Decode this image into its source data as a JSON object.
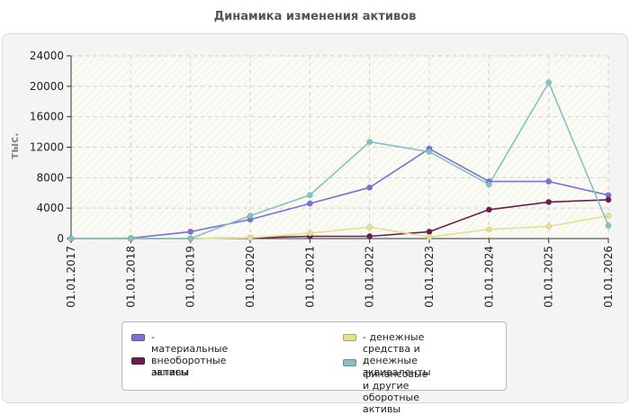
{
  "title": "Динамика изменения активов",
  "chart_data": {
    "type": "line",
    "title": "Динамика изменения активов",
    "ylabel": "тыс.",
    "xlabel": "",
    "ylim": [
      0,
      24000
    ],
    "yticks": [
      "0",
      "4000",
      "8000",
      "12000",
      "16000",
      "20000",
      "24000"
    ],
    "categories": [
      "01.01.2017",
      "01.01.2018",
      "01.01.2019",
      "01.01.2020",
      "01.01.2021",
      "01.01.2022",
      "01.01.2023",
      "01.01.2024",
      "01.01.2025",
      "01.01.2026"
    ],
    "grid": true,
    "legend_position": "bottom",
    "series": [
      {
        "name": "материальные внеоборотные активы",
        "color": "#7b72d6",
        "values": [
          0,
          50,
          900,
          2500,
          4600,
          6700,
          11800,
          7500,
          7500,
          5700
        ]
      },
      {
        "name": "запасы",
        "color": "#6b1e4e",
        "values": [
          0,
          0,
          0,
          100,
          300,
          300,
          900,
          3800,
          4800,
          5100
        ]
      },
      {
        "name": "денежные средства и денежные эквиваленты",
        "color": "#e3e092",
        "values": [
          0,
          0,
          0,
          100,
          700,
          1500,
          200,
          1200,
          1600,
          3000
        ]
      },
      {
        "name": "финансовые и другие оборотные активы",
        "color": "#86c1c1",
        "values": [
          0,
          0,
          0,
          3000,
          5700,
          12700,
          11400,
          7100,
          20500,
          1700
        ]
      }
    ]
  },
  "legend": [
    {
      "label": "- материальные внеоборотные\nактивы",
      "color": "#7b72d6"
    },
    {
      "label": "- запасы",
      "color": "#6b1e4e"
    },
    {
      "label": "- денежные средства и\nденежные эквиваленты",
      "color": "#e3e092"
    },
    {
      "label": "- финансовые и другие\nоборотные активы",
      "color": "#86c1c1"
    }
  ]
}
